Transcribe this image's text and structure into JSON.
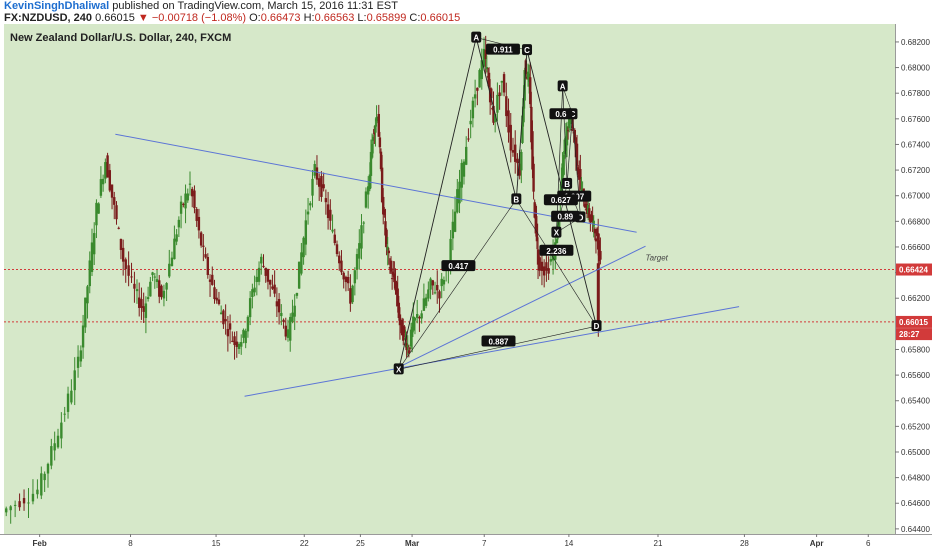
{
  "header": {
    "author": "KevinSinghDhaliwal",
    "published": "published on TradingView.com, March 15, 2016 11:31 EST",
    "symbol": "FX:NZDUSD, 240",
    "last": "0.66015",
    "change": "▼ −0.00718 (−1.08%)",
    "o_label": "O:",
    "o_value": "0.66473",
    "h_label": "H:",
    "h_value": "0.66563",
    "l_label": "L:",
    "l_value": "0.65899",
    "c_label": "C:",
    "c_value": "0.66015"
  },
  "chart_title": "New Zealand Dollar/U.S. Dollar, 240, FXCM",
  "colors": {
    "background": "#d6e8c9",
    "up": "#3a8a2e",
    "down": "#7a1b1b",
    "trendline": "#5b74d6",
    "pattern": "#222222",
    "hline": "#d23a3a"
  },
  "chart_data": {
    "type": "candlestick",
    "title": "New Zealand Dollar/U.S. Dollar, 240, FXCM",
    "ylim": [
      0.6436,
      0.6834
    ],
    "y_ticks": [
      "0.68200",
      "0.68000",
      "0.67800",
      "0.67600",
      "0.67400",
      "0.67200",
      "0.67000",
      "0.66800",
      "0.66600",
      "0.66400",
      "0.66200",
      "0.65800",
      "0.65600",
      "0.65400",
      "0.65200",
      "0.65000",
      "0.64800",
      "0.64600",
      "0.64400"
    ],
    "x_ticks": [
      "Feb",
      "8",
      "15",
      "22",
      "25",
      "Mar",
      "7",
      "14",
      "21",
      "28",
      "Apr",
      "6"
    ],
    "x_tick_positions": [
      0.04,
      0.142,
      0.238,
      0.337,
      0.4,
      0.458,
      0.539,
      0.634,
      0.734,
      0.831,
      0.912,
      0.97
    ],
    "price_labels": [
      {
        "value": "0.66424",
        "price": 0.66424,
        "color": "#d23a3a"
      },
      {
        "value": "0.66015",
        "price": 0.66015,
        "color": "#d23a3a"
      },
      {
        "value": "28:27",
        "price": 0.6592,
        "color": "#d23a3a"
      }
    ],
    "horizontal_lines": [
      0.66424,
      0.66015
    ],
    "annotation_target": "Target",
    "price_path": [
      [
        0.0,
        0.6453
      ],
      [
        0.02,
        0.6462
      ],
      [
        0.04,
        0.647
      ],
      [
        0.055,
        0.65
      ],
      [
        0.07,
        0.6532
      ],
      [
        0.085,
        0.657
      ],
      [
        0.095,
        0.663
      ],
      [
        0.105,
        0.669
      ],
      [
        0.115,
        0.6728
      ],
      [
        0.125,
        0.669
      ],
      [
        0.135,
        0.665
      ],
      [
        0.148,
        0.6625
      ],
      [
        0.158,
        0.661
      ],
      [
        0.168,
        0.664
      ],
      [
        0.178,
        0.662
      ],
      [
        0.19,
        0.6655
      ],
      [
        0.2,
        0.669
      ],
      [
        0.21,
        0.6708
      ],
      [
        0.22,
        0.667
      ],
      [
        0.23,
        0.664
      ],
      [
        0.24,
        0.6618
      ],
      [
        0.25,
        0.66
      ],
      [
        0.26,
        0.6585
      ],
      [
        0.27,
        0.659
      ],
      [
        0.28,
        0.6625
      ],
      [
        0.29,
        0.665
      ],
      [
        0.3,
        0.663
      ],
      [
        0.31,
        0.661
      ],
      [
        0.32,
        0.659
      ],
      [
        0.33,
        0.663
      ],
      [
        0.34,
        0.668
      ],
      [
        0.35,
        0.672
      ],
      [
        0.36,
        0.67
      ],
      [
        0.37,
        0.667
      ],
      [
        0.38,
        0.6645
      ],
      [
        0.39,
        0.662
      ],
      [
        0.4,
        0.666
      ],
      [
        0.41,
        0.671
      ],
      [
        0.415,
        0.675
      ],
      [
        0.42,
        0.6765
      ],
      [
        0.425,
        0.67
      ],
      [
        0.43,
        0.666
      ],
      [
        0.435,
        0.664
      ],
      [
        0.44,
        0.663
      ],
      [
        0.445,
        0.66
      ],
      [
        0.45,
        0.659
      ],
      [
        0.455,
        0.658
      ],
      [
        0.46,
        0.66
      ],
      [
        0.47,
        0.661
      ],
      [
        0.48,
        0.663
      ],
      [
        0.49,
        0.6625
      ],
      [
        0.5,
        0.665
      ],
      [
        0.51,
        0.67
      ],
      [
        0.52,
        0.674
      ],
      [
        0.53,
        0.678
      ],
      [
        0.54,
        0.681
      ],
      [
        0.545,
        0.6785
      ],
      [
        0.55,
        0.676
      ],
      [
        0.56,
        0.679
      ],
      [
        0.57,
        0.674
      ],
      [
        0.58,
        0.672
      ],
      [
        0.585,
        0.68
      ],
      [
        0.59,
        0.679
      ],
      [
        0.595,
        0.67
      ],
      [
        0.6,
        0.665
      ],
      [
        0.61,
        0.664
      ],
      [
        0.62,
        0.666
      ],
      [
        0.625,
        0.67
      ],
      [
        0.63,
        0.674
      ],
      [
        0.635,
        0.676
      ],
      [
        0.64,
        0.675
      ],
      [
        0.645,
        0.672
      ],
      [
        0.65,
        0.67
      ],
      [
        0.655,
        0.669
      ],
      [
        0.66,
        0.668
      ],
      [
        0.665,
        0.667
      ],
      [
        0.67,
        0.665
      ]
    ],
    "trendlines": [
      {
        "name": "descending-resistance",
        "from": [
          0.125,
          0.6748
        ],
        "to": [
          0.71,
          0.66715
        ]
      },
      {
        "name": "rising-support-lower",
        "from": [
          0.27,
          0.65435
        ],
        "to": [
          0.825,
          0.66134
        ]
      },
      {
        "name": "rising-support-upper",
        "from": [
          0.445,
          0.65669
        ],
        "to": [
          0.72,
          0.66606
        ]
      }
    ],
    "pattern_main": {
      "points": [
        {
          "label": "X",
          "x": 0.443,
          "price": 0.65645
        },
        {
          "label": "A",
          "x": 0.53,
          "price": 0.68234
        },
        {
          "label": "B",
          "x": 0.575,
          "price": 0.66971
        },
        {
          "label": "C",
          "x": 0.587,
          "price": 0.68136
        },
        {
          "label": "D",
          "x": 0.665,
          "price": 0.65982
        }
      ],
      "ratios": [
        {
          "label": "0.911",
          "x": 0.56,
          "price": 0.6814
        },
        {
          "label": "0.417",
          "x": 0.51,
          "price": 0.6645
        },
        {
          "label": "2.236",
          "x": 0.62,
          "price": 0.6657
        },
        {
          "label": "0.887",
          "x": 0.555,
          "price": 0.65862
        }
      ]
    },
    "pattern_small": {
      "points": [
        {
          "label": "A",
          "x": 0.627,
          "price": 0.67853
        },
        {
          "label": "C",
          "x": 0.638,
          "price": 0.67636
        },
        {
          "label": "B",
          "x": 0.632,
          "price": 0.67092
        },
        {
          "label": "D",
          "x": 0.647,
          "price": 0.66831
        },
        {
          "label": "X",
          "x": 0.62,
          "price": 0.66712
        }
      ],
      "ratios": [
        {
          "label": "0.6",
          "x": 0.625,
          "price": 0.67636
        },
        {
          "label": "1.607",
          "x": 0.64,
          "price": 0.66993
        },
        {
          "label": "0.627",
          "x": 0.625,
          "price": 0.66965
        },
        {
          "label": "0.89",
          "x": 0.63,
          "price": 0.66836
        }
      ]
    }
  }
}
